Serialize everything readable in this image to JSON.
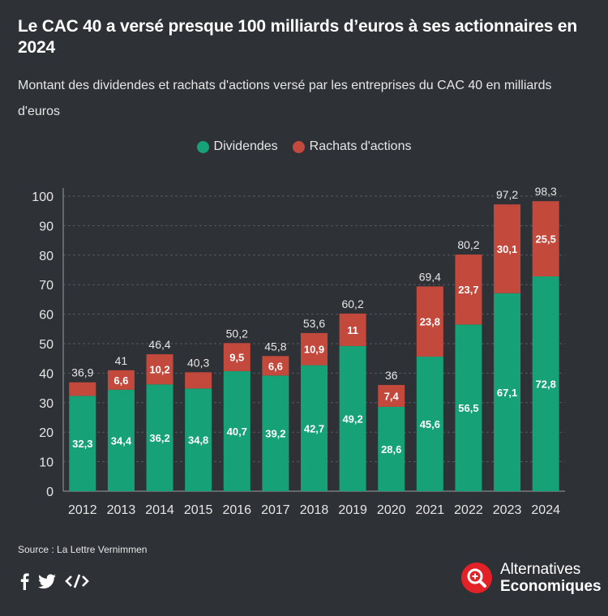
{
  "header": {
    "title": "Le CAC 40 a versé presque 100 milliards d’euros à ses actionnaires en 2024",
    "subtitle": "Montant des dividendes et rachats d'actions versé par les entreprises du CAC 40 en milliards d'euros"
  },
  "colors": {
    "dividendes": "#16a276",
    "rachats": "#c3493d",
    "background": "#2e3135"
  },
  "chart_data": {
    "type": "bar",
    "stacked": true,
    "categories": [
      "2012",
      "2013",
      "2014",
      "2015",
      "2016",
      "2017",
      "2018",
      "2019",
      "2020",
      "2021",
      "2022",
      "2023",
      "2024"
    ],
    "series": [
      {
        "name": "Dividendes",
        "values": [
          32.3,
          34.4,
          36.2,
          34.8,
          40.7,
          39.2,
          42.7,
          49.2,
          28.6,
          45.6,
          56.5,
          67.1,
          72.8
        ]
      },
      {
        "name": "Rachats d'actions",
        "values": [
          4.6,
          6.6,
          10.2,
          5.5,
          9.5,
          6.6,
          10.9,
          11,
          7.4,
          23.8,
          23.7,
          30.1,
          25.5
        ]
      }
    ],
    "series_labels": [
      [
        "32,3",
        "34,4",
        "36,2",
        "34,8",
        "40,7",
        "39,2",
        "42,7",
        "49,2",
        "28,6",
        "45,6",
        "56,5",
        "67,1",
        "72,8"
      ],
      [
        "",
        "6,6",
        "10,2",
        "",
        "9,5",
        "6,6",
        "10,9",
        "11",
        "7,4",
        "23,8",
        "23,7",
        "30,1",
        "25,5"
      ]
    ],
    "totals": [
      36.9,
      41,
      46.4,
      40.3,
      50.2,
      45.8,
      53.6,
      60.2,
      36,
      69.4,
      80.2,
      97.2,
      98.3
    ],
    "total_labels": [
      "36,9",
      "41",
      "46,4",
      "40,3",
      "50,2",
      "45,8",
      "53,6",
      "60,2",
      "36",
      "69,4",
      "80,2",
      "97,2",
      "98,3"
    ],
    "ylim": [
      0,
      100
    ],
    "yticks": [
      0,
      10,
      20,
      30,
      40,
      50,
      60,
      70,
      80,
      90,
      100
    ],
    "grid": true,
    "legend": "top-center"
  },
  "footer": {
    "source": "Source : La Lettre Vernimmen",
    "brand_line1": "Alternatives",
    "brand_line2": "Economiques",
    "social_icons": [
      "facebook-icon",
      "twitter-icon",
      "embed-code-icon"
    ]
  }
}
